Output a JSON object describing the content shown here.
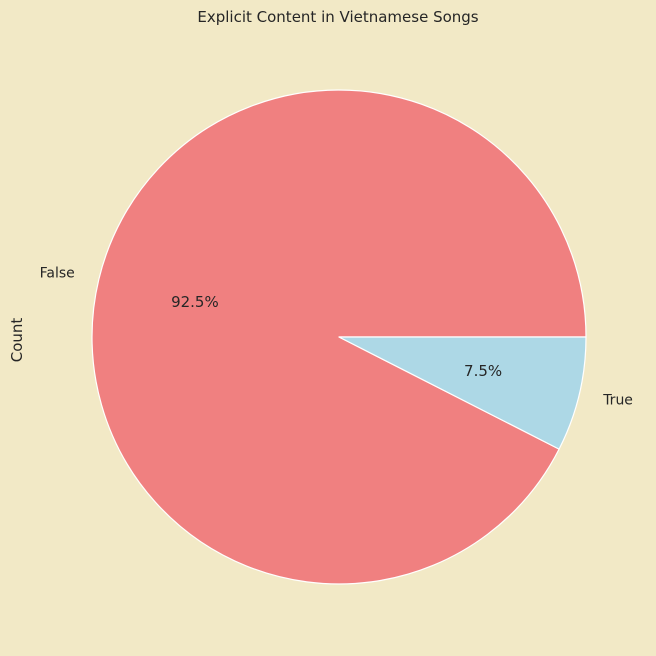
{
  "colors": {
    "background": "#f2e9c6",
    "edge": "#ffffff"
  },
  "chart_data": {
    "type": "pie",
    "title": "Explicit Content in Vietnamese Songs",
    "ylabel": "Count",
    "start_angle_deg": 0,
    "direction": "counterclockwise",
    "slices": [
      {
        "label": "False",
        "percent_label": "92.5%",
        "value": 92.5,
        "color": "#f08080"
      },
      {
        "label": "True",
        "percent_label": "7.5%",
        "value": 7.5,
        "color": "#add8e6"
      }
    ]
  }
}
